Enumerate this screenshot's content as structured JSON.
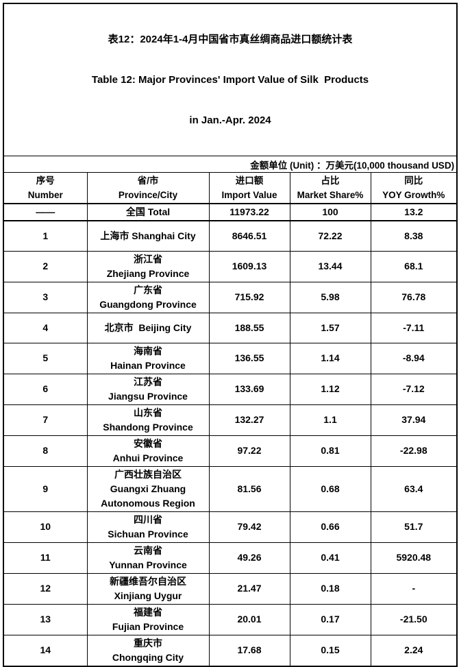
{
  "title": {
    "line1_cn": "表12：2024年1-4月中国省市真丝绸商品进口额统计表",
    "line2_en": "Table 12: Major Provinces' Import Value of Silk  Products",
    "line3_en": "in Jan.-Apr. 2024"
  },
  "unit_note": "金额单位 (Unit) ：万美元(10,000 thousand USD)",
  "colors": {
    "text": "#000000",
    "border": "#000000",
    "background": "#ffffff"
  },
  "table": {
    "columns": [
      {
        "key": "number",
        "label": "序号\nNumber"
      },
      {
        "key": "province",
        "label": "省/市\nProvince/City"
      },
      {
        "key": "import_value",
        "label": "进口额\nImport Value"
      },
      {
        "key": "market_share",
        "label": "占比\nMarket Share%"
      },
      {
        "key": "yoy_growth",
        "label": "同比\nYOY Growth%"
      }
    ],
    "total_row": {
      "number": "——",
      "province": "全国 Total",
      "import_value": "11973.22",
      "market_share": "100",
      "yoy_growth": "13.2"
    },
    "rows": [
      {
        "number": "1",
        "province": "上海市 Shanghai City",
        "import_value": "8646.51",
        "market_share": "72.22",
        "yoy_growth": "8.38"
      },
      {
        "number": "2",
        "province": "浙江省\nZhejiang Province",
        "import_value": "1609.13",
        "market_share": "13.44",
        "yoy_growth": "68.1"
      },
      {
        "number": "3",
        "province": "广东省\nGuangdong Province",
        "import_value": "715.92",
        "market_share": "5.98",
        "yoy_growth": "76.78"
      },
      {
        "number": "4",
        "province": "北京市  Beijing City",
        "import_value": "188.55",
        "market_share": "1.57",
        "yoy_growth": "-7.11"
      },
      {
        "number": "5",
        "province": "海南省\nHainan Province",
        "import_value": "136.55",
        "market_share": "1.14",
        "yoy_growth": "-8.94"
      },
      {
        "number": "6",
        "province": "江苏省\nJiangsu Province",
        "import_value": "133.69",
        "market_share": "1.12",
        "yoy_growth": "-7.12"
      },
      {
        "number": "7",
        "province": "山东省\nShandong Province",
        "import_value": "132.27",
        "market_share": "1.1",
        "yoy_growth": "37.94"
      },
      {
        "number": "8",
        "province": "安徽省\nAnhui Province",
        "import_value": "97.22",
        "market_share": "0.81",
        "yoy_growth": "-22.98"
      },
      {
        "number": "9",
        "province": "广西壮族自治区\nGuangxi Zhuang\nAutonomous Region",
        "import_value": "81.56",
        "market_share": "0.68",
        "yoy_growth": "63.4"
      },
      {
        "number": "10",
        "province": "四川省\nSichuan Province",
        "import_value": "79.42",
        "market_share": "0.66",
        "yoy_growth": "51.7"
      },
      {
        "number": "11",
        "province": "云南省\nYunnan Province",
        "import_value": "49.26",
        "market_share": "0.41",
        "yoy_growth": "5920.48"
      },
      {
        "number": "12",
        "province": "新疆维吾尔自治区\nXinjiang Uygur",
        "import_value": "21.47",
        "market_share": "0.18",
        "yoy_growth": "-"
      },
      {
        "number": "13",
        "province": "福建省\nFujian Province",
        "import_value": "20.01",
        "market_share": "0.17",
        "yoy_growth": "-21.50"
      },
      {
        "number": "14",
        "province": "重庆市\nChongqing City",
        "import_value": "17.68",
        "market_share": "0.15",
        "yoy_growth": "2.24"
      }
    ]
  }
}
